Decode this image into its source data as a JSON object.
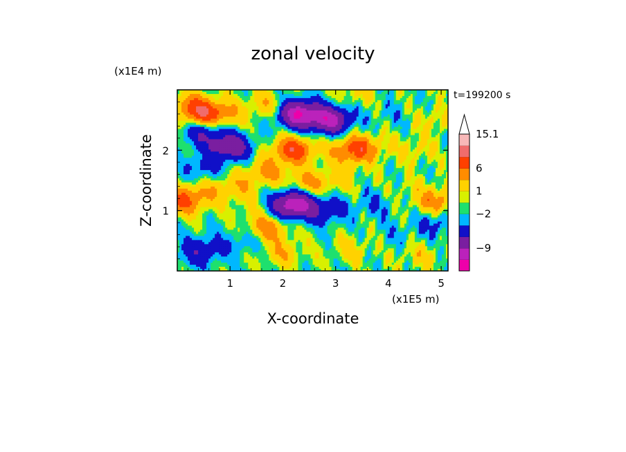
{
  "chart_data": {
    "type": "heatmap",
    "title": "zonal velocity",
    "xlabel": "X-coordinate",
    "ylabel": "Z-coordinate",
    "x_unit": "(x1E5 m)",
    "y_unit": "(x1E4 m)",
    "time_label": "t=199200 s",
    "xlim": [
      0,
      5.13
    ],
    "ylim": [
      0,
      3.0
    ],
    "x_ticks": [
      1,
      2,
      3,
      4,
      5
    ],
    "y_ticks": [
      1,
      2
    ],
    "grid": false,
    "colorbar": {
      "levels": [
        "magenta",
        "purple",
        "indigo",
        "blue",
        "cyan",
        "green",
        "yellow",
        "orange",
        "orange-red",
        "red",
        "light-red",
        "pink"
      ],
      "colors": [
        "#ee00aa",
        "#bb22bb",
        "#7a1ea0",
        "#1010c8",
        "#00b8ff",
        "#1ee06e",
        "#d8f000",
        "#ffd200",
        "#ff8c00",
        "#ff4000",
        "#f06c6c",
        "#f8b8b8"
      ],
      "tick_labels": [
        "-9",
        "-2",
        "1",
        "6",
        "15.1"
      ],
      "extend": "max"
    },
    "blobs": [
      {
        "x": 0.0,
        "z": 1.55,
        "v": 0.5
      },
      {
        "x": 0.5,
        "z": 1.3,
        "v": 2.5
      },
      {
        "x": 0.5,
        "z": 2.6,
        "v": 7
      },
      {
        "x": 0.25,
        "z": 2.75,
        "v": 4
      },
      {
        "x": 0.1,
        "z": 1.15,
        "v": 6
      },
      {
        "x": 0.5,
        "z": 0.35,
        "v": -4
      },
      {
        "x": 0.2,
        "z": 0.2,
        "v": -1
      },
      {
        "x": 0.9,
        "z": 2.6,
        "v": 3
      },
      {
        "x": 0.5,
        "z": 2.3,
        "v": -5
      },
      {
        "x": 1.0,
        "z": 2.05,
        "v": -8
      },
      {
        "x": 0.45,
        "z": 1.7,
        "v": -3
      },
      {
        "x": 1.1,
        "z": 1.4,
        "v": 3
      },
      {
        "x": 1.3,
        "z": 0.5,
        "v": -2
      },
      {
        "x": 1.7,
        "z": 2.75,
        "v": 3
      },
      {
        "x": 2.3,
        "z": 2.6,
        "v": -12
      },
      {
        "x": 2.9,
        "z": 2.5,
        "v": -10
      },
      {
        "x": 2.2,
        "z": 2.0,
        "v": 8
      },
      {
        "x": 1.7,
        "z": 1.65,
        "v": 4
      },
      {
        "x": 2.2,
        "z": 1.1,
        "v": -12
      },
      {
        "x": 2.8,
        "z": 1.0,
        "v": -4
      },
      {
        "x": 2.5,
        "z": 1.45,
        "v": 4
      },
      {
        "x": 2.0,
        "z": 0.3,
        "v": 3
      },
      {
        "x": 1.7,
        "z": 0.7,
        "v": 5
      },
      {
        "x": 3.1,
        "z": 1.55,
        "v": 2
      },
      {
        "x": 3.3,
        "z": 0.35,
        "v": 2
      },
      {
        "x": 3.6,
        "z": 2.05,
        "v": 3
      },
      {
        "x": 3.4,
        "z": 2.95,
        "v": 2
      },
      {
        "x": 3.7,
        "z": 1.1,
        "v": -2
      },
      {
        "x": 4.0,
        "z": 2.6,
        "v": -1
      },
      {
        "x": 4.5,
        "z": 2.0,
        "v": 2
      },
      {
        "x": 4.1,
        "z": 1.8,
        "v": 0
      },
      {
        "x": 4.4,
        "z": 1.35,
        "v": 1
      },
      {
        "x": 4.9,
        "z": 1.15,
        "v": 5
      },
      {
        "x": 4.6,
        "z": 0.25,
        "v": 2
      },
      {
        "x": 4.9,
        "z": 0.8,
        "v": -3
      },
      {
        "x": 4.2,
        "z": 0.6,
        "v": -1
      },
      {
        "x": 4.9,
        "z": 2.5,
        "v": 2
      },
      {
        "x": 3.0,
        "z": 0.75,
        "v": 0
      },
      {
        "x": 1.3,
        "z": 1.05,
        "v": 1
      },
      {
        "x": 3.3,
        "z": 2.0,
        "v": 6
      }
    ]
  }
}
